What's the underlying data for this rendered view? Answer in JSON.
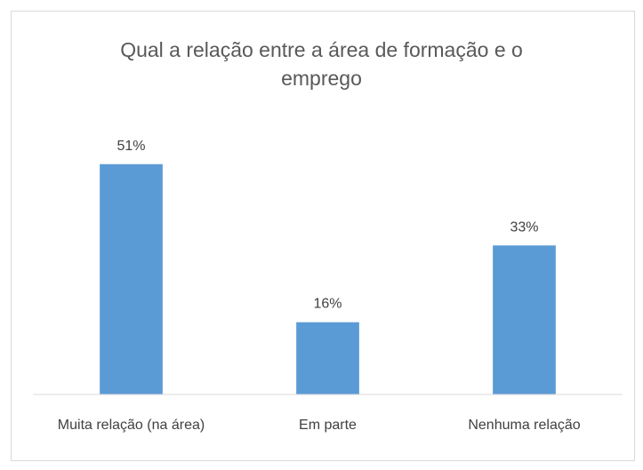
{
  "chart_data": {
    "type": "bar",
    "title": "Qual a relação entre a área de formação e o emprego",
    "categories": [
      "Muita relação (na área)",
      "Em parte",
      "Nenhuma relação"
    ],
    "values": [
      51,
      16,
      33
    ],
    "value_labels": [
      "51%",
      "16%",
      "33%"
    ],
    "color": "#5b9bd5",
    "ylim": [
      0,
      60
    ]
  }
}
